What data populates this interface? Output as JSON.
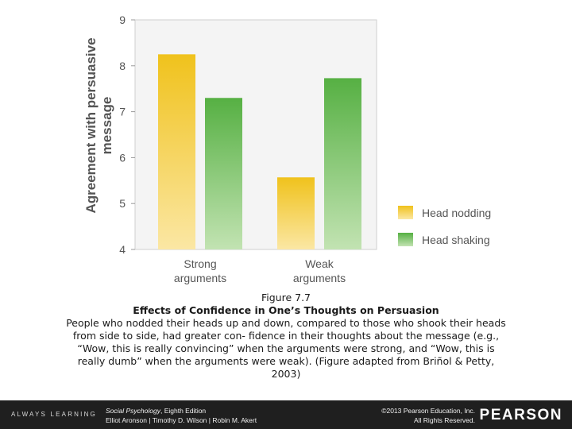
{
  "chart_data": {
    "type": "bar",
    "ylabel": [
      "Agreement with persuasive",
      "message"
    ],
    "ylim": [
      4,
      9
    ],
    "yticks": [
      4,
      5,
      6,
      7,
      8,
      9
    ],
    "categories": [
      [
        "Strong",
        "arguments"
      ],
      [
        "Weak",
        "arguments"
      ]
    ],
    "series": [
      {
        "name": "Head nodding",
        "values": [
          8.25,
          5.57
        ],
        "color": "#f0c21c"
      },
      {
        "name": "Head shaking",
        "values": [
          7.3,
          7.73
        ],
        "color": "#5fb847"
      }
    ],
    "legend_position": "bottom-right",
    "grid": false
  },
  "caption": {
    "figure_number": "Figure 7.7",
    "title": "Effects of Confidence in One’s Thoughts on Persuasion",
    "body_lines": [
      "People who nodded their heads up and down, compared to those who shook their heads",
      "from side to side, had greater con- fidence in their thoughts about the message (e.g.,",
      "“Wow, this is really convincing” when the arguments were strong, and “Wow, this is",
      "really dumb” when the arguments were weak). (Figure adapted from Briñol & Petty,",
      "2003)"
    ]
  },
  "footer": {
    "tagline": "ALWAYS LEARNING",
    "book_title": "Social Psychology",
    "book_edition": ", Eighth Edition",
    "book_authors": "Elliot Aronson | Timothy D. Wilson | Robin M. Akert",
    "copyright_line1": "©2013 Pearson Education, Inc.",
    "copyright_line2": "All Rights Reserved.",
    "logo": "PEARSON"
  }
}
